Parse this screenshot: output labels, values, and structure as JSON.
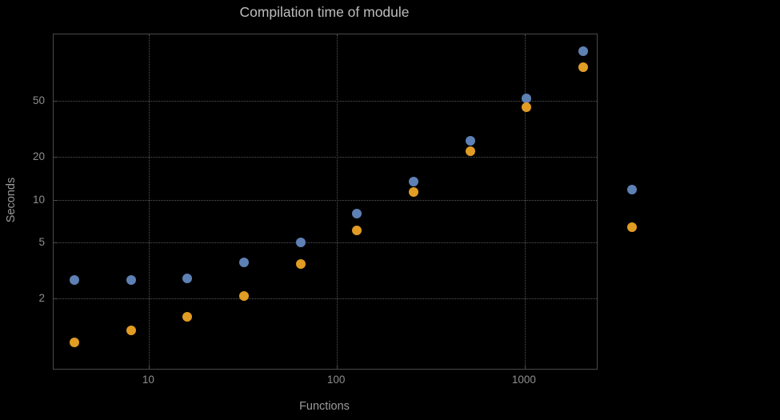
{
  "chart_data": {
    "type": "scatter",
    "title": "Compilation time of module",
    "xlabel": "Functions",
    "ylabel": "Seconds",
    "xscale": "log",
    "yscale": "log",
    "xlim": [
      3.1,
      2420
    ],
    "ylim": [
      0.64,
      147
    ],
    "grid": true,
    "grid_style": "dotted",
    "xticks": [
      {
        "value": 10,
        "label": "10"
      },
      {
        "value": 100,
        "label": "100"
      },
      {
        "value": 1000,
        "label": "1000"
      }
    ],
    "yticks": [
      {
        "value": 2,
        "label": "2"
      },
      {
        "value": 5,
        "label": "5"
      },
      {
        "value": 10,
        "label": "10"
      },
      {
        "value": 20,
        "label": "20"
      },
      {
        "value": 50,
        "label": "50"
      }
    ],
    "series": [
      {
        "name": "series-1-blue",
        "color": "#5e81b5",
        "x": [
          4,
          8,
          16,
          32,
          64,
          128,
          256,
          512,
          1024,
          2048
        ],
        "y": [
          2.7,
          2.7,
          2.8,
          3.6,
          5.0,
          8.0,
          13.5,
          26,
          52,
          112
        ]
      },
      {
        "name": "series-2-orange",
        "color": "#e19c24",
        "x": [
          4,
          8,
          16,
          32,
          64,
          128,
          256,
          512,
          1024,
          2048
        ],
        "y": [
          0.98,
          1.2,
          1.5,
          2.1,
          3.5,
          6.1,
          11.3,
          22,
          45,
          86
        ]
      }
    ],
    "legend": {
      "position": "right-outside",
      "entries": [
        {
          "series": "series-1-blue",
          "color": "#5e81b5",
          "label": ""
        },
        {
          "series": "series-2-orange",
          "color": "#e19c24",
          "label": ""
        }
      ]
    }
  },
  "colors": {
    "background": "#000000",
    "frame": "#4a4a4a",
    "grid": "#565656",
    "tick_label": "#8e8e8e",
    "axis_label": "#9a9a9a",
    "title": "#bdbdbd"
  }
}
